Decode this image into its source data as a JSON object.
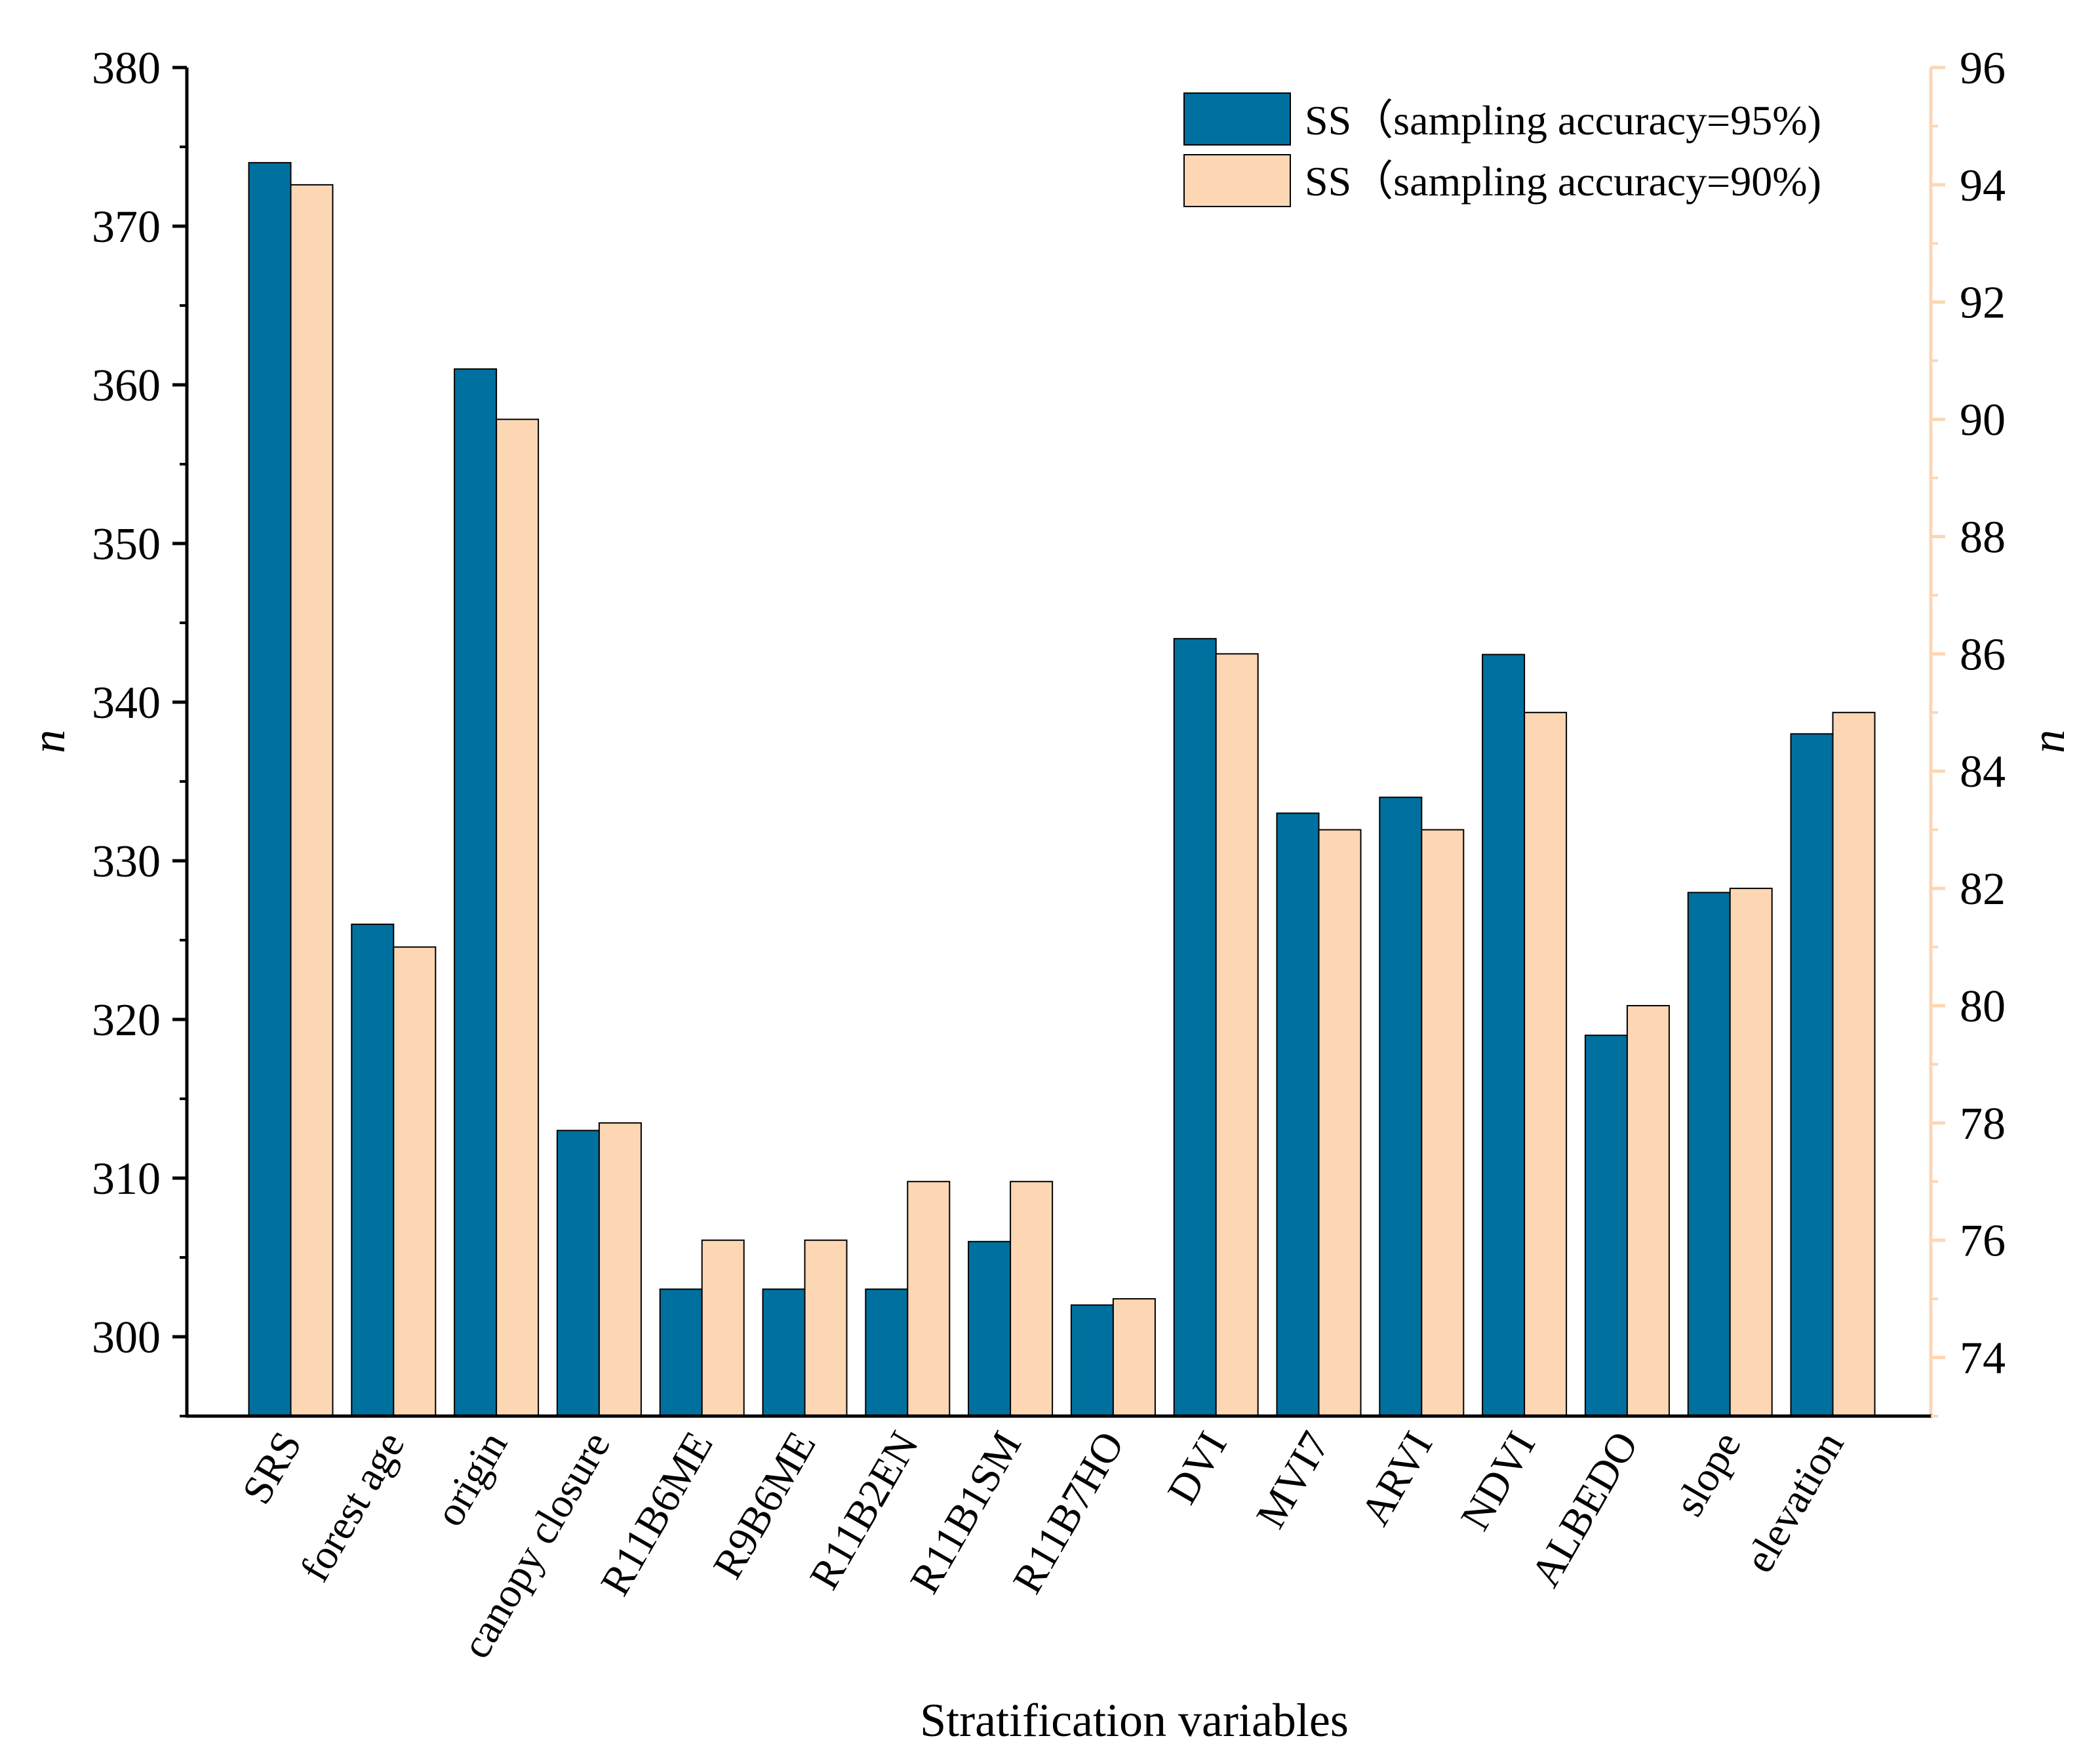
{
  "chart_data": {
    "type": "bar",
    "title": "",
    "xlabel": "Stratification variables",
    "ylabel_left": "n",
    "ylabel_right": "n",
    "categories": [
      "SRS",
      "forest age",
      "origin",
      "canopy closure",
      "R11B6ME",
      "R9B6ME",
      "R11B2EN",
      "R11B1SM",
      "R11B7HO",
      "DVI",
      "MVI7",
      "ARVI",
      "NDVI",
      "ALBEDO",
      "slope",
      "elevation"
    ],
    "ylim_left": [
      295,
      380
    ],
    "yticks_left": [
      300,
      310,
      320,
      330,
      340,
      350,
      360,
      370,
      380
    ],
    "ylim_right": [
      73,
      96
    ],
    "yticks_right": [
      74,
      76,
      78,
      80,
      82,
      84,
      86,
      88,
      90,
      92,
      94,
      96
    ],
    "series": [
      {
        "name": "SS（sampling accuracy=95%)",
        "axis": "left",
        "color": "#00719f",
        "values": [
          374,
          326,
          361,
          313,
          303,
          303,
          303,
          306,
          302,
          344,
          333,
          334,
          343,
          319,
          328,
          338
        ]
      },
      {
        "name": "SS（sampling accuracy=90%)",
        "axis": "right",
        "color": "#fdd6b4",
        "values": [
          94,
          81,
          90,
          78,
          76,
          76,
          77,
          77,
          75,
          86,
          83,
          83,
          85,
          80,
          82,
          85
        ]
      }
    ],
    "legend_position": "top-right",
    "right_axis_color": "#fdd6b4"
  }
}
